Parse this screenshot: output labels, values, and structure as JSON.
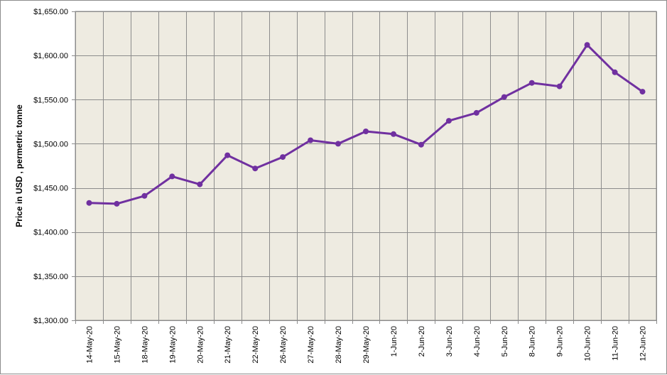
{
  "chart_data": {
    "type": "line",
    "title": "",
    "xlabel": "",
    "ylabel": "Price in USD , permetric tonne",
    "categories": [
      "14-May-20",
      "15-May-20",
      "18-May-20",
      "19-May-20",
      "20-May-20",
      "21-May-20",
      "22-May-20",
      "26-May-20",
      "27-May-20",
      "28-May-20",
      "29-May-20",
      "1-Jun-20",
      "2-Jun-20",
      "3-Jun-20",
      "4-Jun-20",
      "5-Jun-20",
      "8-Jun-20",
      "9-Jun-20",
      "10-Jun-20",
      "11-Jun-20",
      "12-Jun-20"
    ],
    "series": [
      {
        "values": [
          1433,
          1432,
          1441,
          1463,
          1454,
          1487,
          1472,
          1485,
          1504,
          1500,
          1514,
          1511,
          1499,
          1526,
          1535,
          1553,
          1569,
          1565,
          1612,
          1581,
          1559
        ]
      }
    ],
    "ylim": [
      1300,
      1650
    ],
    "yticks": [
      "$1,300.00",
      "$1,350.00",
      "$1,400.00",
      "$1,450.00",
      "$1,500.00",
      "$1,550.00",
      "$1,600.00",
      "$1,650.00"
    ],
    "grid": true,
    "legend": "none",
    "colors": {
      "line": "#7030a0",
      "plot_bg": "#eeebe1",
      "grid": "#8c8c8c"
    }
  }
}
